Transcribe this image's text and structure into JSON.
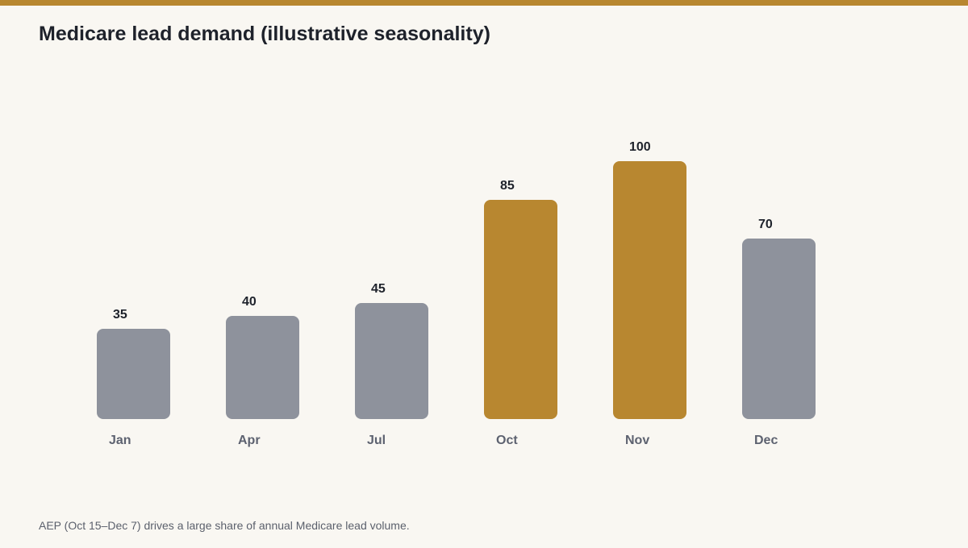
{
  "title": "Medicare lead demand (illustrative seasonality)",
  "footnote": "AEP (Oct 15–Dec 7) drives a large share of annual Medicare lead volume.",
  "colors": {
    "accent": "#b88730",
    "neutral": "#8e929c",
    "background": "#f9f7f2"
  },
  "chart_data": {
    "type": "bar",
    "title": "Medicare lead demand (illustrative seasonality)",
    "categories": [
      "Jan",
      "Apr",
      "Jul",
      "Oct",
      "Nov",
      "Dec"
    ],
    "values": [
      35,
      40,
      45,
      85,
      100,
      70
    ],
    "highlighted": [
      "Oct",
      "Nov"
    ],
    "xlabel": "",
    "ylabel": "",
    "ylim": [
      0,
      100
    ],
    "grid": false,
    "legend": "none",
    "data_labels": true
  }
}
